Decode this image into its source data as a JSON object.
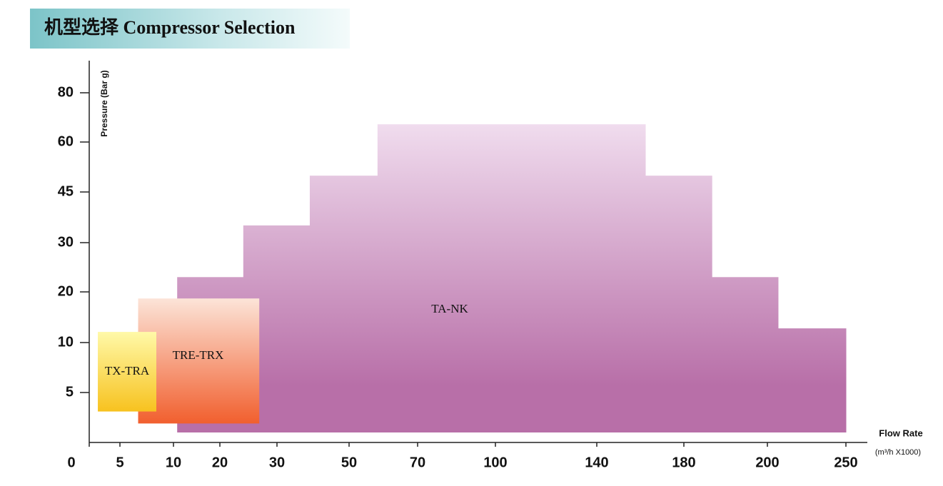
{
  "chart_data": {
    "type": "region",
    "title": "机型选择  Compressor Selection",
    "ylabel": "Pressure (Bar g)",
    "xlabel": "Flow Rate",
    "xunit": "(m³/h X1000)",
    "xticks": [
      0,
      5,
      10,
      20,
      30,
      50,
      70,
      100,
      140,
      180,
      200,
      250
    ],
    "yticks": [
      5,
      10,
      20,
      30,
      45,
      60,
      80
    ],
    "ylim": [
      0,
      95
    ],
    "regions": [
      {
        "name": "TA-NK",
        "color": "#b86fa8",
        "color_top": "#f0dcee",
        "bottom": 1,
        "x_edges": [
          10.8,
          24.1,
          39.1,
          58.3,
          162.3,
          186.7,
          206.8,
          250
        ],
        "tops": [
          23,
          35.1,
          49.9,
          67.2,
          49.9,
          23,
          12.8
        ]
      },
      {
        "name": "TRE-TRX",
        "color": "#f15f2e",
        "color_top": "#fce4d8",
        "x": [
          6.7,
          26.9
        ],
        "y": [
          1.9,
          18.7
        ]
      },
      {
        "name": "TX-TRA",
        "color": "#f7c21f",
        "color_top": "#fff9a8",
        "x": [
          1.4,
          8.4
        ],
        "y": [
          3.1,
          12.1
        ]
      }
    ]
  }
}
